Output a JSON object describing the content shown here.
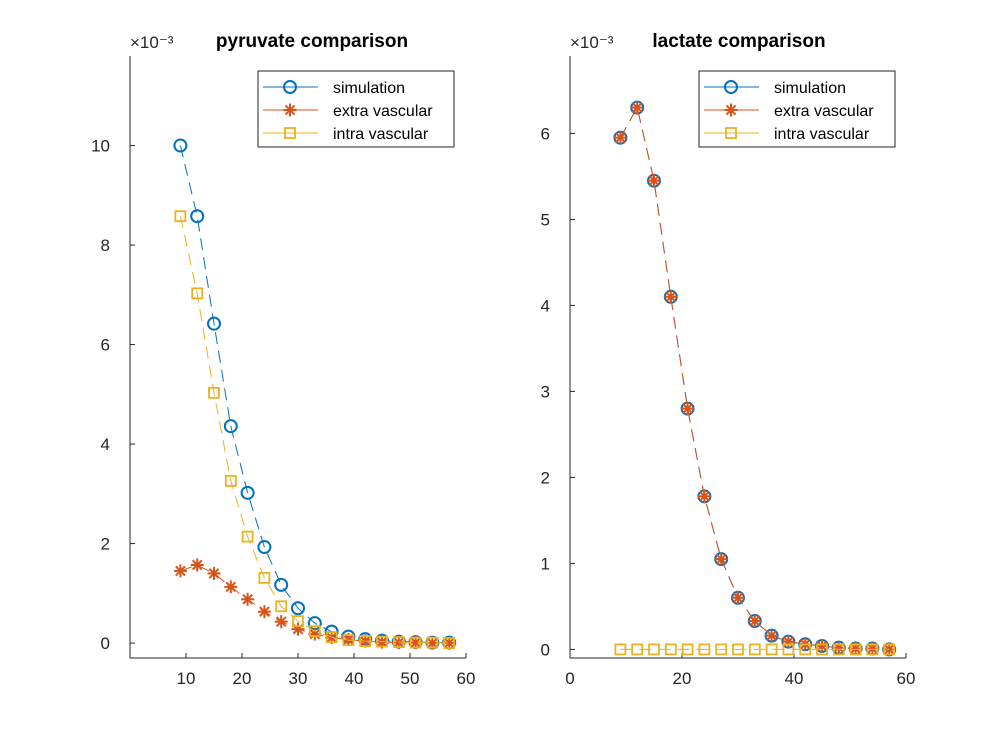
{
  "chart_data": [
    {
      "type": "line",
      "title": "pyruvate comparison",
      "exponent_label": "×10⁻³",
      "xlabel": "",
      "ylabel": "",
      "xlim": [
        0,
        60
      ],
      "ylim": [
        -0.0003,
        0.0118
      ],
      "xticks": [
        10,
        20,
        30,
        40,
        50,
        60
      ],
      "yticks": [
        0,
        2,
        4,
        6,
        8,
        10
      ],
      "ytick_scale": 0.001,
      "grid": false,
      "legend_position": "top-right",
      "x": [
        9,
        12,
        15,
        18,
        21,
        24,
        27,
        30,
        33,
        36,
        39,
        42,
        45,
        48,
        51,
        54,
        57
      ],
      "series": [
        {
          "name": "simulation",
          "color": "#0072BD",
          "marker": "circle",
          "values": [
            0.01,
            0.00858,
            0.00642,
            0.00436,
            0.00302,
            0.00193,
            0.00117,
            0.0007,
            0.0004,
            0.00023,
            0.00013,
            8e-05,
            5e-05,
            3e-05,
            2e-05,
            1e-05,
            1e-05
          ]
        },
        {
          "name": "extra vascular",
          "color": "#D95319",
          "marker": "asterisk",
          "values": [
            0.00145,
            0.00157,
            0.0014,
            0.00113,
            0.00088,
            0.00063,
            0.00043,
            0.00028,
            0.00018,
            0.00011,
            7e-05,
            4e-05,
            2e-05,
            1e-05,
            1e-05,
            0.0,
            0.0
          ]
        },
        {
          "name": "intra vascular",
          "color": "#EDB120",
          "marker": "square",
          "values": [
            0.00858,
            0.00703,
            0.00503,
            0.00326,
            0.00214,
            0.00131,
            0.00074,
            0.00044,
            0.00024,
            0.00012,
            6e-05,
            4e-05,
            3e-05,
            2e-05,
            1e-05,
            1e-05,
            0.0
          ]
        }
      ]
    },
    {
      "type": "line",
      "title": "lactate comparison",
      "exponent_label": "×10⁻³",
      "xlabel": "",
      "ylabel": "",
      "xlim": [
        0,
        60
      ],
      "ylim": [
        -0.0001,
        0.0069
      ],
      "xticks": [
        0,
        20,
        40,
        60
      ],
      "yticks": [
        0,
        1,
        2,
        3,
        4,
        5,
        6
      ],
      "ytick_scale": 0.001,
      "grid": false,
      "legend_position": "top-right",
      "x": [
        9,
        12,
        15,
        18,
        21,
        24,
        27,
        30,
        33,
        36,
        39,
        42,
        45,
        48,
        51,
        54,
        57
      ],
      "series": [
        {
          "name": "simulation",
          "color": "#0072BD",
          "marker": "circle",
          "values": [
            0.00595,
            0.0063,
            0.00545,
            0.0041,
            0.0028,
            0.00178,
            0.00105,
            0.0006,
            0.00033,
            0.00016,
            9e-05,
            6e-05,
            4e-05,
            2e-05,
            1e-05,
            1e-05,
            0.0
          ]
        },
        {
          "name": "extra vascular",
          "color": "#D95319",
          "marker": "asterisk",
          "values": [
            0.00595,
            0.0063,
            0.00545,
            0.0041,
            0.0028,
            0.00178,
            0.00105,
            0.0006,
            0.00033,
            0.00016,
            9e-05,
            6e-05,
            4e-05,
            2e-05,
            1e-05,
            1e-05,
            0.0
          ]
        },
        {
          "name": "intra vascular",
          "color": "#EDB120",
          "marker": "square",
          "values": [
            0,
            0,
            0,
            0,
            0,
            0,
            0,
            0,
            0,
            0,
            0,
            0,
            0,
            0,
            0,
            0,
            0
          ]
        }
      ]
    }
  ]
}
